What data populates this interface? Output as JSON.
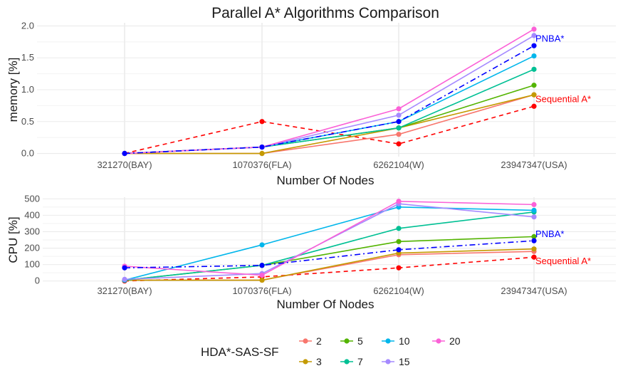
{
  "title": "Parallel A* Algorithms Comparison",
  "legend": {
    "title": "HDA*-SAS-SF",
    "entries": [
      "2",
      "3",
      "5",
      "7",
      "10",
      "15",
      "20"
    ]
  },
  "colors": {
    "2": "#F8766D",
    "3": "#C49A00",
    "5": "#53B400",
    "7": "#00C094",
    "10": "#00B6EB",
    "15": "#A58AFF",
    "20": "#FB61D7",
    "pnba": "#0000FF",
    "sequential": "#FF0000"
  },
  "chart_data": [
    {
      "type": "line",
      "ylabel": "memory [%]",
      "xlabel": "Number Of Nodes",
      "categories": [
        "321270(BAY)",
        "1070376(FLA)",
        "6262104(W)",
        "23947347(USA)"
      ],
      "ylim": [
        -0.05,
        2.05
      ],
      "yticks": [
        0.0,
        0.5,
        1.0,
        1.5,
        2.0
      ],
      "ytick_labels": [
        "0.0",
        "0.5",
        "1.0",
        "1.5",
        "2.0"
      ],
      "grid": true,
      "series": [
        {
          "name": "2",
          "values": [
            0,
            0,
            0.3,
            0.92
          ]
        },
        {
          "name": "3",
          "values": [
            0,
            0,
            0.4,
            0.92
          ]
        },
        {
          "name": "5",
          "values": [
            0,
            0.1,
            0.4,
            1.07
          ]
        },
        {
          "name": "7",
          "values": [
            0,
            0.1,
            0.4,
            1.32
          ]
        },
        {
          "name": "10",
          "values": [
            0,
            0.1,
            0.5,
            1.53
          ]
        },
        {
          "name": "15",
          "values": [
            0,
            0.1,
            0.6,
            1.85
          ]
        },
        {
          "name": "20",
          "values": [
            0,
            0.1,
            0.7,
            1.95
          ]
        }
      ],
      "reference_series": [
        {
          "key": "pnba",
          "values": [
            0,
            0.1,
            0.5,
            1.69
          ],
          "style": "dashdot"
        },
        {
          "key": "sequential",
          "values": [
            0,
            0.5,
            0.15,
            0.74
          ],
          "style": "dashed"
        }
      ],
      "annotations": [
        {
          "text": "PNBA*",
          "key": "pnba",
          "anchor_value": 1.8
        },
        {
          "text": "Sequential A*",
          "key": "sequential",
          "anchor_value": 0.85
        }
      ]
    },
    {
      "type": "line",
      "ylabel": "CPU [%]",
      "xlabel": "Number Of Nodes",
      "categories": [
        "321270(BAY)",
        "1070376(FLA)",
        "6262104(W)",
        "23947347(USA)"
      ],
      "ylim": [
        -10,
        510
      ],
      "yticks": [
        0,
        100,
        200,
        300,
        400,
        500
      ],
      "ytick_labels": [
        "0",
        "100",
        "200",
        "300",
        "400",
        "500"
      ],
      "grid": true,
      "series": [
        {
          "name": "2",
          "values": [
            5,
            5,
            160,
            180
          ]
        },
        {
          "name": "3",
          "values": [
            5,
            5,
            170,
            195
          ]
        },
        {
          "name": "5",
          "values": [
            5,
            95,
            240,
            270
          ]
        },
        {
          "name": "7",
          "values": [
            5,
            95,
            320,
            420
          ]
        },
        {
          "name": "10",
          "values": [
            5,
            220,
            450,
            430
          ]
        },
        {
          "name": "15",
          "values": [
            10,
            45,
            470,
            390
          ]
        },
        {
          "name": "20",
          "values": [
            90,
            35,
            485,
            465
          ]
        }
      ],
      "reference_series": [
        {
          "key": "pnba",
          "values": [
            80,
            95,
            190,
            245
          ],
          "style": "dashdot"
        },
        {
          "key": "sequential",
          "values": [
            0,
            25,
            80,
            145
          ],
          "style": "dashed"
        }
      ],
      "annotations": [
        {
          "text": "PNBA*",
          "key": "pnba",
          "anchor_value": 285
        },
        {
          "text": "Sequential A*",
          "key": "sequential",
          "anchor_value": 120
        }
      ]
    }
  ]
}
